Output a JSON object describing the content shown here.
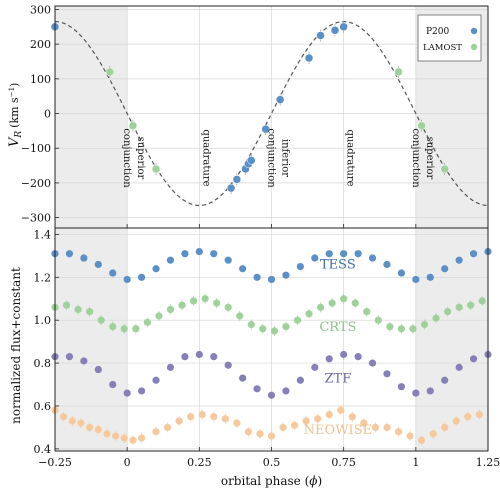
{
  "chart_data": [
    {
      "type": "scatter",
      "panel": "top",
      "ylabel_main": "V",
      "ylabel_sub": "R",
      "ylabel_unit": "(km s",
      "ylabel_sup": "−1",
      "ylabel_close": ")",
      "xlim": [
        -0.25,
        1.25
      ],
      "ylim": [
        -330,
        310
      ],
      "yticks": [
        -300,
        -200,
        -100,
        0,
        100,
        200,
        300
      ],
      "ytick_labels": [
        "−300",
        "−200",
        "−100",
        "0",
        "100",
        "200",
        "300"
      ],
      "grid": true,
      "shaded_x_ranges": [
        [
          -0.25,
          0.0
        ],
        [
          1.0,
          1.25
        ]
      ],
      "model_curve": {
        "amplitude": 265,
        "period": 1.0,
        "peak_phase": 0.75,
        "style": "dashed"
      },
      "legend": {
        "placement": "top-right",
        "entries": [
          {
            "label": "P200",
            "color": "#5b8fc7"
          },
          {
            "label": "LAMOST",
            "color": "#9fd19a"
          }
        ]
      },
      "series": [
        {
          "name": "P200",
          "color": "#5b8fc7",
          "x": [
            -0.25,
            0.36,
            0.38,
            0.41,
            0.42,
            0.43,
            0.48,
            0.53,
            0.63,
            0.67,
            0.72,
            0.75
          ],
          "y": [
            250,
            -215,
            -190,
            -160,
            -145,
            -135,
            -45,
            40,
            160,
            225,
            240,
            250
          ]
        },
        {
          "name": "LAMOST",
          "color": "#9fd19a",
          "x": [
            -0.06,
            0.02,
            0.1,
            0.94,
            1.02,
            1.1
          ],
          "y": [
            120,
            -35,
            -160,
            120,
            -35,
            -160
          ]
        }
      ],
      "annotations": [
        {
          "label": "superior conjunction",
          "x": 0.0
        },
        {
          "label": "quadrature",
          "x": 0.25
        },
        {
          "label": "inferior conjunction",
          "x": 0.5
        },
        {
          "label": "quadrature",
          "x": 0.75
        },
        {
          "label": "superior conjunction",
          "x": 1.0
        }
      ]
    },
    {
      "type": "scatter",
      "panel": "bottom",
      "xlabel_prefix": "orbital phase (",
      "xlabel_phi": "ϕ",
      "xlabel_suffix": ")",
      "ylabel": "normalized flux+constant",
      "xlim": [
        -0.25,
        1.25
      ],
      "ylim": [
        0.39,
        1.43
      ],
      "xticks": [
        -0.25,
        0,
        0.25,
        0.5,
        0.75,
        1,
        1.25
      ],
      "xtick_labels": [
        "−0.25",
        "0",
        "0.25",
        "0.5",
        "0.75",
        "1",
        "1.25"
      ],
      "yticks": [
        0.4,
        0.6,
        0.8,
        1.0,
        1.2,
        1.4
      ],
      "ytick_labels": [
        "0.4",
        "0.6",
        "0.8",
        "1.0",
        "1.2",
        "1.4"
      ],
      "grid": true,
      "shaded_x_ranges": [
        [
          -0.25,
          0.0
        ],
        [
          1.0,
          1.25
        ]
      ],
      "series": [
        {
          "name": "TESS",
          "color": "#5b8fc7",
          "label_color": "#3f6fa8",
          "label_x": 0.73,
          "label_y": 1.24,
          "x": [
            -0.25,
            -0.2,
            -0.15,
            -0.1,
            -0.05,
            0.0,
            0.05,
            0.1,
            0.15,
            0.2,
            0.25,
            0.3,
            0.35,
            0.4,
            0.45,
            0.5,
            0.55,
            0.6,
            0.65,
            0.7,
            0.75,
            0.8,
            0.85,
            0.9,
            0.95,
            1.0,
            1.05,
            1.1,
            1.15,
            1.2,
            1.25
          ],
          "y": [
            1.31,
            1.31,
            1.29,
            1.26,
            1.22,
            1.19,
            1.2,
            1.24,
            1.28,
            1.31,
            1.32,
            1.31,
            1.28,
            1.24,
            1.2,
            1.19,
            1.21,
            1.25,
            1.29,
            1.31,
            1.31,
            1.31,
            1.29,
            1.26,
            1.22,
            1.19,
            1.2,
            1.24,
            1.28,
            1.31,
            1.32
          ]
        },
        {
          "name": "CRTS",
          "color": "#9fd19a",
          "label_color": "#8cc487",
          "label_x": 0.73,
          "label_y": 0.95,
          "x": [
            -0.25,
            -0.21,
            -0.17,
            -0.13,
            -0.09,
            -0.05,
            -0.01,
            0.03,
            0.07,
            0.11,
            0.15,
            0.19,
            0.23,
            0.27,
            0.31,
            0.35,
            0.39,
            0.43,
            0.47,
            0.51,
            0.55,
            0.59,
            0.63,
            0.67,
            0.71,
            0.75,
            0.79,
            0.83,
            0.87,
            0.91,
            0.95,
            0.99,
            1.03,
            1.07,
            1.11,
            1.15,
            1.19,
            1.23
          ],
          "y": [
            1.06,
            1.07,
            1.05,
            1.04,
            1.0,
            0.97,
            0.96,
            0.96,
            0.99,
            1.02,
            1.05,
            1.07,
            1.09,
            1.1,
            1.08,
            1.06,
            1.02,
            0.98,
            0.96,
            0.95,
            0.97,
            1.0,
            1.03,
            1.06,
            1.08,
            1.1,
            1.08,
            1.04,
            1.0,
            0.97,
            0.96,
            0.96,
            0.98,
            1.01,
            1.04,
            1.06,
            1.07,
            1.09
          ]
        },
        {
          "name": "ZTF",
          "color": "#8680b8",
          "label_color": "#6a66a6",
          "label_x": 0.73,
          "label_y": 0.71,
          "x": [
            -0.25,
            -0.2,
            -0.15,
            -0.1,
            -0.05,
            0.0,
            0.05,
            0.1,
            0.15,
            0.2,
            0.25,
            0.3,
            0.35,
            0.4,
            0.45,
            0.5,
            0.55,
            0.6,
            0.65,
            0.7,
            0.75,
            0.8,
            0.85,
            0.9,
            0.95,
            1.0,
            1.05,
            1.1,
            1.15,
            1.2,
            1.25
          ],
          "y": [
            0.83,
            0.83,
            0.81,
            0.77,
            0.7,
            0.66,
            0.67,
            0.72,
            0.78,
            0.83,
            0.84,
            0.83,
            0.79,
            0.73,
            0.68,
            0.65,
            0.67,
            0.72,
            0.78,
            0.82,
            0.84,
            0.83,
            0.8,
            0.75,
            0.69,
            0.66,
            0.67,
            0.72,
            0.78,
            0.82,
            0.84
          ]
        },
        {
          "name": "NEOWISE",
          "color": "#f5c99b",
          "label_color": "#f0c08e",
          "label_x": 0.73,
          "label_y": 0.47,
          "x": [
            -0.25,
            -0.22,
            -0.19,
            -0.16,
            -0.13,
            -0.1,
            -0.07,
            -0.04,
            -0.01,
            0.02,
            0.05,
            0.1,
            0.14,
            0.18,
            0.22,
            0.26,
            0.3,
            0.34,
            0.38,
            0.42,
            0.46,
            0.5,
            0.54,
            0.58,
            0.62,
            0.66,
            0.7,
            0.74,
            0.78,
            0.82,
            0.86,
            0.9,
            0.94,
            0.98,
            1.02,
            1.06,
            1.1,
            1.14,
            1.18,
            1.22
          ],
          "y": [
            0.58,
            0.55,
            0.53,
            0.52,
            0.5,
            0.49,
            0.47,
            0.46,
            0.45,
            0.44,
            0.45,
            0.48,
            0.5,
            0.53,
            0.55,
            0.56,
            0.55,
            0.54,
            0.52,
            0.48,
            0.47,
            0.46,
            0.5,
            0.51,
            0.53,
            0.54,
            0.56,
            0.58,
            0.55,
            0.52,
            0.5,
            0.5,
            0.48,
            0.46,
            0.44,
            0.47,
            0.5,
            0.53,
            0.55,
            0.56
          ]
        }
      ]
    }
  ]
}
